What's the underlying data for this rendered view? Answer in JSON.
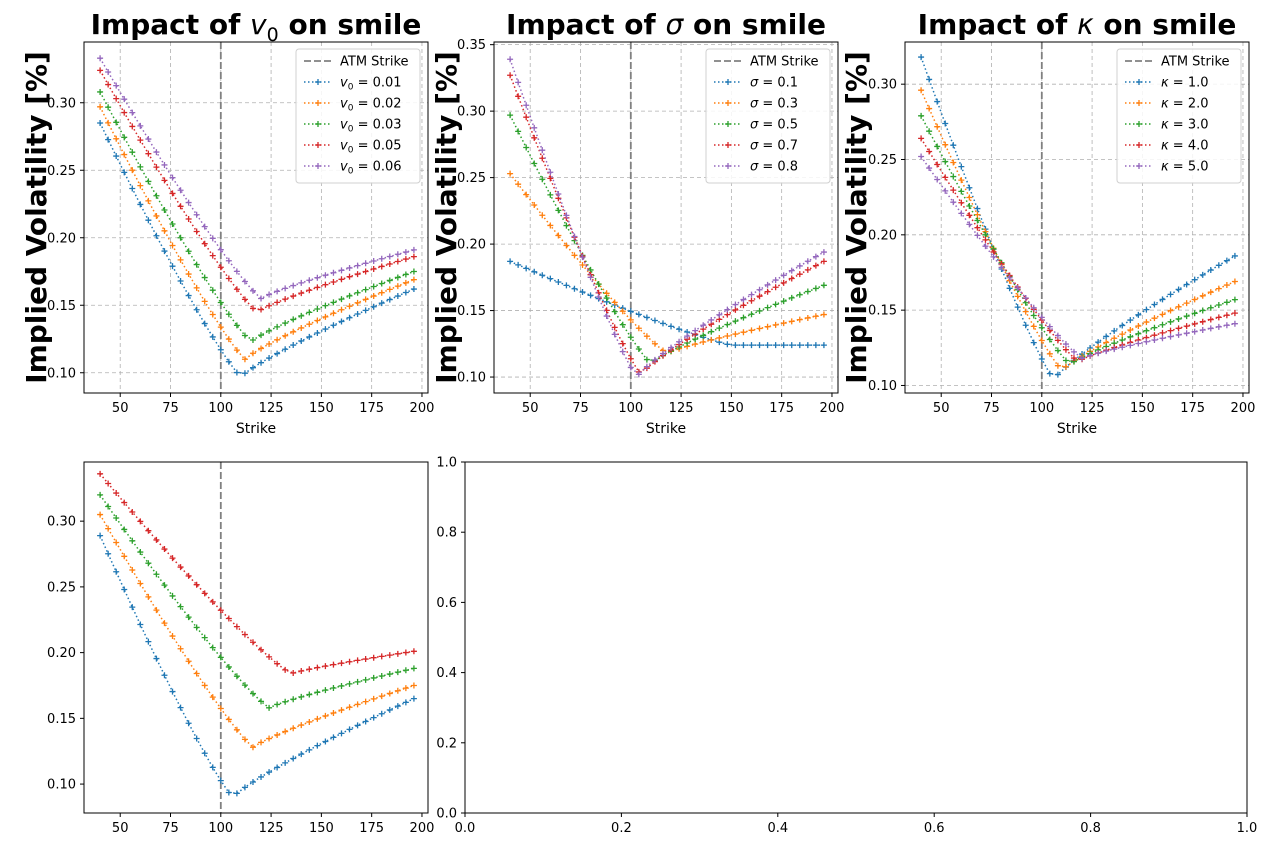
{
  "colors": {
    "c0": "#1f77b4",
    "c1": "#ff7f0e",
    "c2": "#2ca02c",
    "c3": "#d62728",
    "c4": "#9467bd",
    "atm": "#808080",
    "grid": "#b0b0b0"
  },
  "chart_data": [
    {
      "type": "line",
      "title_prefix": "Impact of ",
      "title_symbol": "v",
      "title_sub": "0",
      "title_suffix": " on smile",
      "xlabel": "Strike",
      "ylabel": "Implied Volatility [%]",
      "xlim": [
        32,
        203
      ],
      "ylim": [
        0.085,
        0.345
      ],
      "xticks": [
        50,
        75,
        100,
        125,
        150,
        175,
        200
      ],
      "yticks": [
        0.1,
        0.15,
        0.2,
        0.25,
        0.3
      ],
      "grid": true,
      "legend": "top-right",
      "atm_strike": 100,
      "atm_label": "ATM Strike",
      "strikes": [
        40,
        44,
        48,
        52,
        56,
        60,
        64,
        68,
        72,
        76,
        80,
        84,
        88,
        92,
        96,
        100,
        104,
        108,
        112,
        116,
        120,
        124,
        128,
        132,
        136,
        140,
        144,
        148,
        152,
        156,
        160,
        164,
        168,
        172,
        176,
        180,
        184,
        188,
        192,
        196
      ],
      "series": [
        {
          "name_symbol": "v",
          "name_sub": "0",
          "name_value": " = 0.01",
          "color": "c0",
          "min_x": 110,
          "min_y": 0.097,
          "y_left": 0.285,
          "y_right": 0.162
        },
        {
          "name_symbol": "v",
          "name_sub": "0",
          "name_value": " = 0.02",
          "color": "c1",
          "min_x": 112,
          "min_y": 0.11,
          "y_left": 0.297,
          "y_right": 0.169
        },
        {
          "name_symbol": "v",
          "name_sub": "0",
          "name_value": " = 0.03",
          "color": "c2",
          "min_x": 115,
          "min_y": 0.123,
          "y_left": 0.308,
          "y_right": 0.175
        },
        {
          "name_symbol": "v",
          "name_sub": "0",
          "name_value": " = 0.05",
          "color": "c3",
          "min_x": 118,
          "min_y": 0.145,
          "y_left": 0.324,
          "y_right": 0.186
        },
        {
          "name_symbol": "v",
          "name_sub": "0",
          "name_value": " = 0.06",
          "color": "c4",
          "min_x": 120,
          "min_y": 0.155,
          "y_left": 0.333,
          "y_right": 0.191
        }
      ]
    },
    {
      "type": "line",
      "title_prefix": "Impact of ",
      "title_symbol": "σ",
      "title_sub": "",
      "title_suffix": " on smile",
      "xlabel": "Strike",
      "ylabel": "Implied Volatility [%]",
      "xlim": [
        32,
        203
      ],
      "ylim": [
        0.088,
        0.352
      ],
      "xticks": [
        50,
        75,
        100,
        125,
        150,
        175,
        200
      ],
      "yticks": [
        0.1,
        0.15,
        0.2,
        0.25,
        0.3,
        0.35
      ],
      "grid": true,
      "legend": "top-right",
      "atm_strike": 100,
      "atm_label": "ATM Strike",
      "strikes": [
        40,
        44,
        48,
        52,
        56,
        60,
        64,
        68,
        72,
        76,
        80,
        84,
        88,
        92,
        96,
        100,
        104,
        108,
        112,
        116,
        120,
        124,
        128,
        132,
        136,
        140,
        144,
        148,
        152,
        156,
        160,
        164,
        168,
        172,
        176,
        180,
        184,
        188,
        192,
        196
      ],
      "series": [
        {
          "name_symbol": "σ",
          "name_sub": "",
          "name_value": " = 0.1",
          "color": "c0",
          "min_x": 150,
          "min_y": 0.124,
          "y_left": 0.187,
          "y_right": 0.124
        },
        {
          "name_symbol": "σ",
          "name_sub": "",
          "name_value": " = 0.3",
          "color": "c1",
          "min_x": 118,
          "min_y": 0.118,
          "y_left": 0.253,
          "y_right": 0.147
        },
        {
          "name_symbol": "σ",
          "name_sub": "",
          "name_value": " = 0.5",
          "color": "c2",
          "min_x": 110,
          "min_y": 0.11,
          "y_left": 0.297,
          "y_right": 0.169
        },
        {
          "name_symbol": "σ",
          "name_sub": "",
          "name_value": " = 0.7",
          "color": "c3",
          "min_x": 105,
          "min_y": 0.102,
          "y_left": 0.327,
          "y_right": 0.187
        },
        {
          "name_symbol": "σ",
          "name_sub": "",
          "name_value": " = 0.8",
          "color": "c4",
          "min_x": 103,
          "min_y": 0.1,
          "y_left": 0.339,
          "y_right": 0.194
        }
      ]
    },
    {
      "type": "line",
      "title_prefix": "Impact of ",
      "title_symbol": "κ",
      "title_sub": "",
      "title_suffix": " on smile",
      "xlabel": "Strike",
      "ylabel": "Implied Volatility [%]",
      "xlim": [
        32,
        203
      ],
      "ylim": [
        0.095,
        0.328
      ],
      "xticks": [
        50,
        75,
        100,
        125,
        150,
        175,
        200
      ],
      "yticks": [
        0.1,
        0.15,
        0.2,
        0.25,
        0.3
      ],
      "grid": true,
      "legend": "top-right",
      "atm_strike": 100,
      "atm_label": "ATM Strike",
      "strikes": [
        40,
        44,
        48,
        52,
        56,
        60,
        64,
        68,
        72,
        76,
        80,
        84,
        88,
        92,
        96,
        100,
        104,
        108,
        112,
        116,
        120,
        124,
        128,
        132,
        136,
        140,
        144,
        148,
        152,
        156,
        160,
        164,
        168,
        172,
        176,
        180,
        184,
        188,
        192,
        196
      ],
      "series": [
        {
          "name_symbol": "κ",
          "name_sub": "",
          "name_value": " = 1.0",
          "color": "c0",
          "min_x": 106,
          "min_y": 0.104,
          "y_left": 0.318,
          "y_right": 0.186
        },
        {
          "name_symbol": "κ",
          "name_sub": "",
          "name_value": " = 2.0",
          "color": "c1",
          "min_x": 110,
          "min_y": 0.11,
          "y_left": 0.296,
          "y_right": 0.169
        },
        {
          "name_symbol": "κ",
          "name_sub": "",
          "name_value": " = 3.0",
          "color": "c2",
          "min_x": 114,
          "min_y": 0.114,
          "y_left": 0.279,
          "y_right": 0.157
        },
        {
          "name_symbol": "κ",
          "name_sub": "",
          "name_value": " = 4.0",
          "color": "c3",
          "min_x": 118,
          "min_y": 0.116,
          "y_left": 0.264,
          "y_right": 0.148
        },
        {
          "name_symbol": "κ",
          "name_sub": "",
          "name_value": " = 5.0",
          "color": "c4",
          "min_x": 120,
          "min_y": 0.118,
          "y_left": 0.252,
          "y_right": 0.141
        }
      ]
    },
    {
      "type": "line",
      "xlim": [
        32,
        203
      ],
      "ylim": [
        0.078,
        0.345
      ],
      "xticks": [
        50,
        75,
        100,
        125,
        150,
        175,
        200
      ],
      "yticks": [
        0.1,
        0.15,
        0.2,
        0.25,
        0.3
      ],
      "grid": false,
      "atm_strike": 100,
      "strikes": [
        40,
        44,
        48,
        52,
        56,
        60,
        64,
        68,
        72,
        76,
        80,
        84,
        88,
        92,
        96,
        100,
        104,
        108,
        112,
        116,
        120,
        124,
        128,
        132,
        136,
        140,
        144,
        148,
        152,
        156,
        160,
        164,
        168,
        172,
        176,
        180,
        184,
        188,
        192,
        196
      ],
      "series": [
        {
          "color": "c0",
          "min_x": 106,
          "min_y": 0.09,
          "y_left": 0.289,
          "y_right": 0.165
        },
        {
          "color": "c1",
          "min_x": 116,
          "min_y": 0.128,
          "y_left": 0.305,
          "y_right": 0.175
        },
        {
          "color": "c2",
          "min_x": 124,
          "min_y": 0.158,
          "y_left": 0.32,
          "y_right": 0.188
        },
        {
          "color": "c3",
          "min_x": 135,
          "min_y": 0.184,
          "y_left": 0.336,
          "y_right": 0.201
        }
      ]
    },
    {
      "type": "line",
      "xlim": [
        0,
        1
      ],
      "ylim": [
        0,
        1
      ],
      "xticks": [
        0.0,
        0.2,
        0.4,
        0.6,
        0.8,
        1.0
      ],
      "yticks": [
        0.0,
        0.2,
        0.4,
        0.6,
        0.8,
        1.0
      ],
      "grid": false,
      "series": []
    }
  ]
}
